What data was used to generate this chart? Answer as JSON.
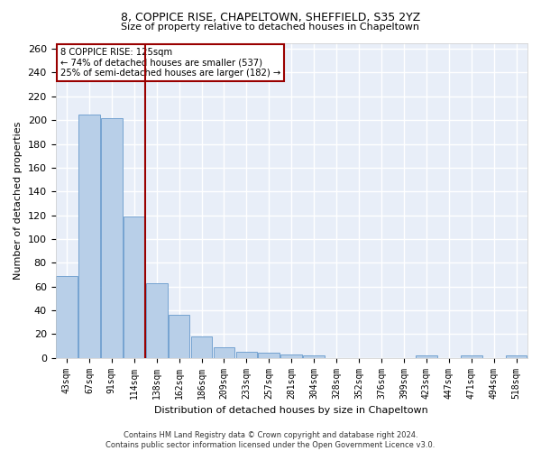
{
  "title1": "8, COPPICE RISE, CHAPELTOWN, SHEFFIELD, S35 2YZ",
  "title2": "Size of property relative to detached houses in Chapeltown",
  "xlabel": "Distribution of detached houses by size in Chapeltown",
  "ylabel": "Number of detached properties",
  "categories": [
    "43sqm",
    "67sqm",
    "91sqm",
    "114sqm",
    "138sqm",
    "162sqm",
    "186sqm",
    "209sqm",
    "233sqm",
    "257sqm",
    "281sqm",
    "304sqm",
    "328sqm",
    "352sqm",
    "376sqm",
    "399sqm",
    "423sqm",
    "447sqm",
    "471sqm",
    "494sqm",
    "518sqm"
  ],
  "values": [
    69,
    205,
    202,
    119,
    63,
    36,
    18,
    9,
    5,
    4,
    3,
    2,
    0,
    0,
    0,
    0,
    2,
    0,
    2,
    0,
    2
  ],
  "bar_color": "#b8cfe8",
  "bar_edge_color": "#6699cc",
  "vline_color": "#990000",
  "annotation_text": "8 COPPICE RISE: 125sqm\n← 74% of detached houses are smaller (537)\n25% of semi-detached houses are larger (182) →",
  "annotation_box_color": "#ffffff",
  "annotation_box_edge_color": "#990000",
  "ylim": [
    0,
    265
  ],
  "yticks": [
    0,
    20,
    40,
    60,
    80,
    100,
    120,
    140,
    160,
    180,
    200,
    220,
    240,
    260
  ],
  "fig_background": "#ffffff",
  "plot_background": "#e8eef8",
  "grid_color": "#ffffff",
  "footer": "Contains HM Land Registry data © Crown copyright and database right 2024.\nContains public sector information licensed under the Open Government Licence v3.0."
}
